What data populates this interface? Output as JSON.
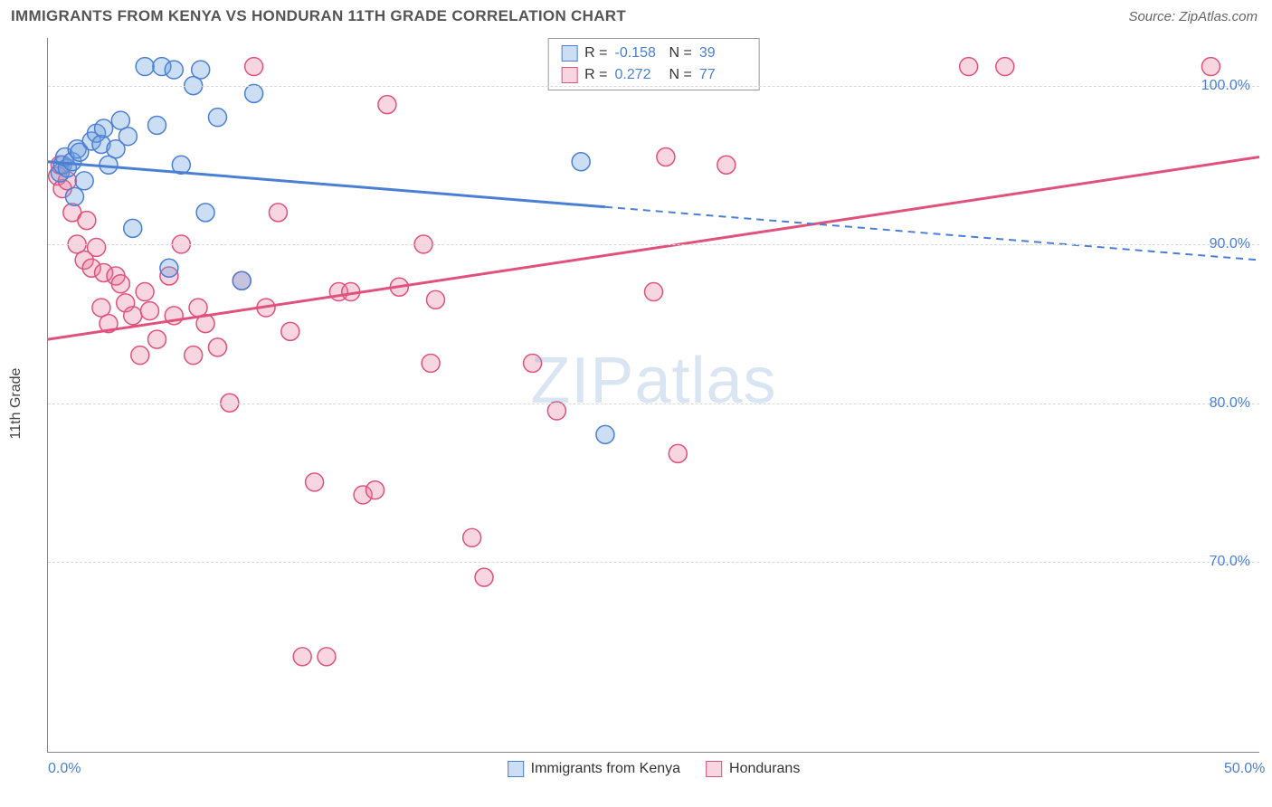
{
  "header": {
    "title": "IMMIGRANTS FROM KENYA VS HONDURAN 11TH GRADE CORRELATION CHART",
    "source": "Source: ZipAtlas.com"
  },
  "watermark": {
    "part1": "ZIP",
    "part2": "atlas"
  },
  "axes": {
    "y_title": "11th Grade",
    "xlim": [
      0,
      50
    ],
    "ylim": [
      58,
      103
    ],
    "x_ticks": [
      {
        "v": 0,
        "label": "0.0%"
      },
      {
        "v": 50,
        "label": "50.0%"
      }
    ],
    "y_ticks": [
      {
        "v": 100,
        "label": "100.0%"
      },
      {
        "v": 90,
        "label": "90.0%"
      },
      {
        "v": 80,
        "label": "80.0%"
      },
      {
        "v": 70,
        "label": "70.0%"
      }
    ],
    "grid_color": "#d8d8d8",
    "label_color": "#4b7fd4",
    "label_fontsize": 16
  },
  "series": {
    "kenya": {
      "label": "Immigrants from Kenya",
      "stroke": "#4b7fd4",
      "fill": "rgba(110,160,220,0.35)",
      "marker_radius": 10,
      "R": "-0.158",
      "N": "39",
      "trend": {
        "x1": 0,
        "y1": 95.2,
        "x2": 50,
        "y2": 89.0,
        "solid_until_x": 23
      },
      "points": [
        [
          0.5,
          94.5
        ],
        [
          0.6,
          95.0
        ],
        [
          0.8,
          94.8
        ],
        [
          0.7,
          95.5
        ],
        [
          1.0,
          95.2
        ],
        [
          1.2,
          96.0
        ],
        [
          1.5,
          94.0
        ],
        [
          1.3,
          95.8
        ],
        [
          1.8,
          96.5
        ],
        [
          1.1,
          93.0
        ],
        [
          2.0,
          97.0
        ],
        [
          2.2,
          96.3
        ],
        [
          2.5,
          95.0
        ],
        [
          2.3,
          97.3
        ],
        [
          2.8,
          96.0
        ],
        [
          3.0,
          97.8
        ],
        [
          3.3,
          96.8
        ],
        [
          3.5,
          91.0
        ],
        [
          4.0,
          101.2
        ],
        [
          4.5,
          97.5
        ],
        [
          4.7,
          101.2
        ],
        [
          5.0,
          88.5
        ],
        [
          5.2,
          101.0
        ],
        [
          5.5,
          95.0
        ],
        [
          6.0,
          100.0
        ],
        [
          6.3,
          101.0
        ],
        [
          6.5,
          92.0
        ],
        [
          7.0,
          98.0
        ],
        [
          8.0,
          87.7
        ],
        [
          8.5,
          99.5
        ],
        [
          22.0,
          95.2
        ],
        [
          23.0,
          78.0
        ]
      ]
    },
    "honduran": {
      "label": "Hondurans",
      "stroke": "#e0517b",
      "fill": "rgba(230,120,155,0.30)",
      "marker_radius": 10,
      "R": "0.272",
      "N": "77",
      "trend": {
        "x1": 0,
        "y1": 84.0,
        "x2": 50,
        "y2": 95.5,
        "solid_until_x": 50
      },
      "points": [
        [
          0.4,
          94.3
        ],
        [
          0.5,
          95.0
        ],
        [
          0.6,
          93.5
        ],
        [
          0.8,
          94.0
        ],
        [
          1.0,
          92.0
        ],
        [
          1.2,
          90.0
        ],
        [
          1.5,
          89.0
        ],
        [
          1.6,
          91.5
        ],
        [
          1.8,
          88.5
        ],
        [
          2.0,
          89.8
        ],
        [
          2.2,
          86.0
        ],
        [
          2.3,
          88.2
        ],
        [
          2.5,
          85.0
        ],
        [
          2.8,
          88.0
        ],
        [
          3.0,
          87.5
        ],
        [
          3.2,
          86.3
        ],
        [
          3.5,
          85.5
        ],
        [
          3.8,
          83.0
        ],
        [
          4.0,
          87.0
        ],
        [
          4.2,
          85.8
        ],
        [
          4.5,
          84.0
        ],
        [
          5.0,
          88.0
        ],
        [
          5.2,
          85.5
        ],
        [
          5.5,
          90.0
        ],
        [
          6.0,
          83.0
        ],
        [
          6.2,
          86.0
        ],
        [
          6.5,
          85.0
        ],
        [
          7.0,
          83.5
        ],
        [
          7.5,
          80.0
        ],
        [
          8.0,
          87.7
        ],
        [
          8.5,
          101.2
        ],
        [
          9.0,
          86.0
        ],
        [
          9.5,
          92.0
        ],
        [
          10.0,
          84.5
        ],
        [
          10.5,
          64.0
        ],
        [
          11.0,
          75.0
        ],
        [
          11.5,
          64.0
        ],
        [
          12.0,
          87.0
        ],
        [
          12.5,
          87.0
        ],
        [
          13.0,
          74.2
        ],
        [
          13.5,
          74.5
        ],
        [
          14.0,
          98.8
        ],
        [
          14.5,
          87.3
        ],
        [
          15.5,
          90.0
        ],
        [
          15.8,
          82.5
        ],
        [
          16.0,
          86.5
        ],
        [
          17.5,
          71.5
        ],
        [
          18.0,
          69.0
        ],
        [
          20.0,
          82.5
        ],
        [
          21.0,
          79.5
        ],
        [
          23.0,
          101.2
        ],
        [
          25.0,
          87.0
        ],
        [
          25.5,
          95.5
        ],
        [
          26.0,
          76.8
        ],
        [
          28.0,
          95.0
        ],
        [
          38.0,
          101.2
        ],
        [
          39.5,
          101.2
        ],
        [
          48.0,
          101.2
        ]
      ]
    }
  },
  "legend_top": {
    "rows": [
      {
        "swatch": "kenya",
        "r_label": "R =",
        "r_val": "-0.158",
        "n_label": "N =",
        "n_val": "39"
      },
      {
        "swatch": "honduran",
        "r_label": "R =",
        "r_val": "0.272",
        "n_label": "N =",
        "n_val": "77"
      }
    ]
  },
  "colors": {
    "title_color": "#555555",
    "source_color": "#666666",
    "axis_line": "#888888",
    "background": "#ffffff"
  }
}
